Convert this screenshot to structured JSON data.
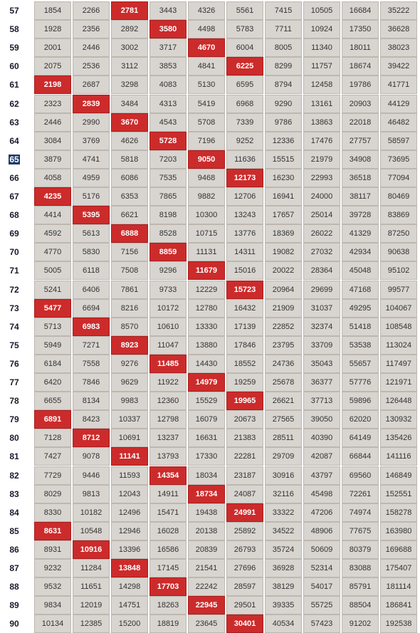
{
  "table": {
    "highlight_color": "#cc2b2b",
    "cell_color": "#d8d4cf",
    "selected_row_label": "65",
    "rows": [
      {
        "label": "57",
        "values": [
          "1854",
          "2266",
          "2781",
          "3443",
          "4326",
          "5561",
          "7415",
          "10505",
          "16684",
          "35222"
        ],
        "highlight": 2
      },
      {
        "label": "58",
        "values": [
          "1928",
          "2356",
          "2892",
          "3580",
          "4498",
          "5783",
          "7711",
          "10924",
          "17350",
          "36628"
        ],
        "highlight": 3
      },
      {
        "label": "59",
        "values": [
          "2001",
          "2446",
          "3002",
          "3717",
          "4670",
          "6004",
          "8005",
          "11340",
          "18011",
          "38023"
        ],
        "highlight": 4
      },
      {
        "label": "60",
        "values": [
          "2075",
          "2536",
          "3112",
          "3853",
          "4841",
          "6225",
          "8299",
          "11757",
          "18674",
          "39422"
        ],
        "highlight": 5
      },
      {
        "label": "61",
        "values": [
          "2198",
          "2687",
          "3298",
          "4083",
          "5130",
          "6595",
          "8794",
          "12458",
          "19786",
          "41771"
        ],
        "highlight": 0
      },
      {
        "label": "62",
        "values": [
          "2323",
          "2839",
          "3484",
          "4313",
          "5419",
          "6968",
          "9290",
          "13161",
          "20903",
          "44129"
        ],
        "highlight": 1
      },
      {
        "label": "63",
        "values": [
          "2446",
          "2990",
          "3670",
          "4543",
          "5708",
          "7339",
          "9786",
          "13863",
          "22018",
          "46482"
        ],
        "highlight": 2
      },
      {
        "label": "64",
        "values": [
          "3084",
          "3769",
          "4626",
          "5728",
          "7196",
          "9252",
          "12336",
          "17476",
          "27757",
          "58597"
        ],
        "highlight": 3
      },
      {
        "label": "65",
        "values": [
          "3879",
          "4741",
          "5818",
          "7203",
          "9050",
          "11636",
          "15515",
          "21979",
          "34908",
          "73695"
        ],
        "highlight": 4
      },
      {
        "label": "66",
        "values": [
          "4058",
          "4959",
          "6086",
          "7535",
          "9468",
          "12173",
          "16230",
          "22993",
          "36518",
          "77094"
        ],
        "highlight": 5
      },
      {
        "label": "67",
        "values": [
          "4235",
          "5176",
          "6353",
          "7865",
          "9882",
          "12706",
          "16941",
          "24000",
          "38117",
          "80469"
        ],
        "highlight": 0
      },
      {
        "label": "68",
        "values": [
          "4414",
          "5395",
          "6621",
          "8198",
          "10300",
          "13243",
          "17657",
          "25014",
          "39728",
          "83869"
        ],
        "highlight": 1
      },
      {
        "label": "69",
        "values": [
          "4592",
          "5613",
          "6888",
          "8528",
          "10715",
          "13776",
          "18369",
          "26022",
          "41329",
          "87250"
        ],
        "highlight": 2
      },
      {
        "label": "70",
        "values": [
          "4770",
          "5830",
          "7156",
          "8859",
          "11131",
          "14311",
          "19082",
          "27032",
          "42934",
          "90638"
        ],
        "highlight": 3
      },
      {
        "label": "71",
        "values": [
          "5005",
          "6118",
          "7508",
          "9296",
          "11679",
          "15016",
          "20022",
          "28364",
          "45048",
          "95102"
        ],
        "highlight": 4
      },
      {
        "label": "72",
        "values": [
          "5241",
          "6406",
          "7861",
          "9733",
          "12229",
          "15723",
          "20964",
          "29699",
          "47168",
          "99577"
        ],
        "highlight": 5
      },
      {
        "label": "73",
        "values": [
          "5477",
          "6694",
          "8216",
          "10172",
          "12780",
          "16432",
          "21909",
          "31037",
          "49295",
          "104067"
        ],
        "highlight": 0
      },
      {
        "label": "74",
        "values": [
          "5713",
          "6983",
          "8570",
          "10610",
          "13330",
          "17139",
          "22852",
          "32374",
          "51418",
          "108548"
        ],
        "highlight": 1
      },
      {
        "label": "75",
        "values": [
          "5949",
          "7271",
          "8923",
          "11047",
          "13880",
          "17846",
          "23795",
          "33709",
          "53538",
          "113024"
        ],
        "highlight": 2
      },
      {
        "label": "76",
        "values": [
          "6184",
          "7558",
          "9276",
          "11485",
          "14430",
          "18552",
          "24736",
          "35043",
          "55657",
          "117497"
        ],
        "highlight": 3
      },
      {
        "label": "77",
        "values": [
          "6420",
          "7846",
          "9629",
          "11922",
          "14979",
          "19259",
          "25678",
          "36377",
          "57776",
          "121971"
        ],
        "highlight": 4
      },
      {
        "label": "78",
        "values": [
          "6655",
          "8134",
          "9983",
          "12360",
          "15529",
          "19965",
          "26621",
          "37713",
          "59896",
          "126448"
        ],
        "highlight": 5
      },
      {
        "label": "79",
        "values": [
          "6891",
          "8423",
          "10337",
          "12798",
          "16079",
          "20673",
          "27565",
          "39050",
          "62020",
          "130932"
        ],
        "highlight": 0
      },
      {
        "label": "80",
        "values": [
          "7128",
          "8712",
          "10691",
          "13237",
          "16631",
          "21383",
          "28511",
          "40390",
          "64149",
          "135426"
        ],
        "highlight": 1
      },
      {
        "label": "81",
        "values": [
          "7427",
          "9078",
          "11141",
          "13793",
          "17330",
          "22281",
          "29709",
          "42087",
          "66844",
          "141116"
        ],
        "highlight": 2
      },
      {
        "label": "82",
        "values": [
          "7729",
          "9446",
          "11593",
          "14354",
          "18034",
          "23187",
          "30916",
          "43797",
          "69560",
          "146849"
        ],
        "highlight": 3
      },
      {
        "label": "83",
        "values": [
          "8029",
          "9813",
          "12043",
          "14911",
          "18734",
          "24087",
          "32116",
          "45498",
          "72261",
          "152551"
        ],
        "highlight": 4
      },
      {
        "label": "84",
        "values": [
          "8330",
          "10182",
          "12496",
          "15471",
          "19438",
          "24991",
          "33322",
          "47206",
          "74974",
          "158278"
        ],
        "highlight": 5
      },
      {
        "label": "85",
        "values": [
          "8631",
          "10548",
          "12946",
          "16028",
          "20138",
          "25892",
          "34522",
          "48906",
          "77675",
          "163980"
        ],
        "highlight": 0
      },
      {
        "label": "86",
        "values": [
          "8931",
          "10916",
          "13396",
          "16586",
          "20839",
          "26793",
          "35724",
          "50609",
          "80379",
          "169688"
        ],
        "highlight": 1
      },
      {
        "label": "87",
        "values": [
          "9232",
          "11284",
          "13848",
          "17145",
          "21541",
          "27696",
          "36928",
          "52314",
          "83088",
          "175407"
        ],
        "highlight": 2
      },
      {
        "label": "88",
        "values": [
          "9532",
          "11651",
          "14298",
          "17703",
          "22242",
          "28597",
          "38129",
          "54017",
          "85791",
          "181114"
        ],
        "highlight": 3
      },
      {
        "label": "89",
        "values": [
          "9834",
          "12019",
          "14751",
          "18263",
          "22945",
          "29501",
          "39335",
          "55725",
          "88504",
          "186841"
        ],
        "highlight": 4
      },
      {
        "label": "90",
        "values": [
          "10134",
          "12385",
          "15200",
          "18819",
          "23645",
          "30401",
          "40534",
          "57423",
          "91202",
          "192538"
        ],
        "highlight": 5
      }
    ]
  }
}
